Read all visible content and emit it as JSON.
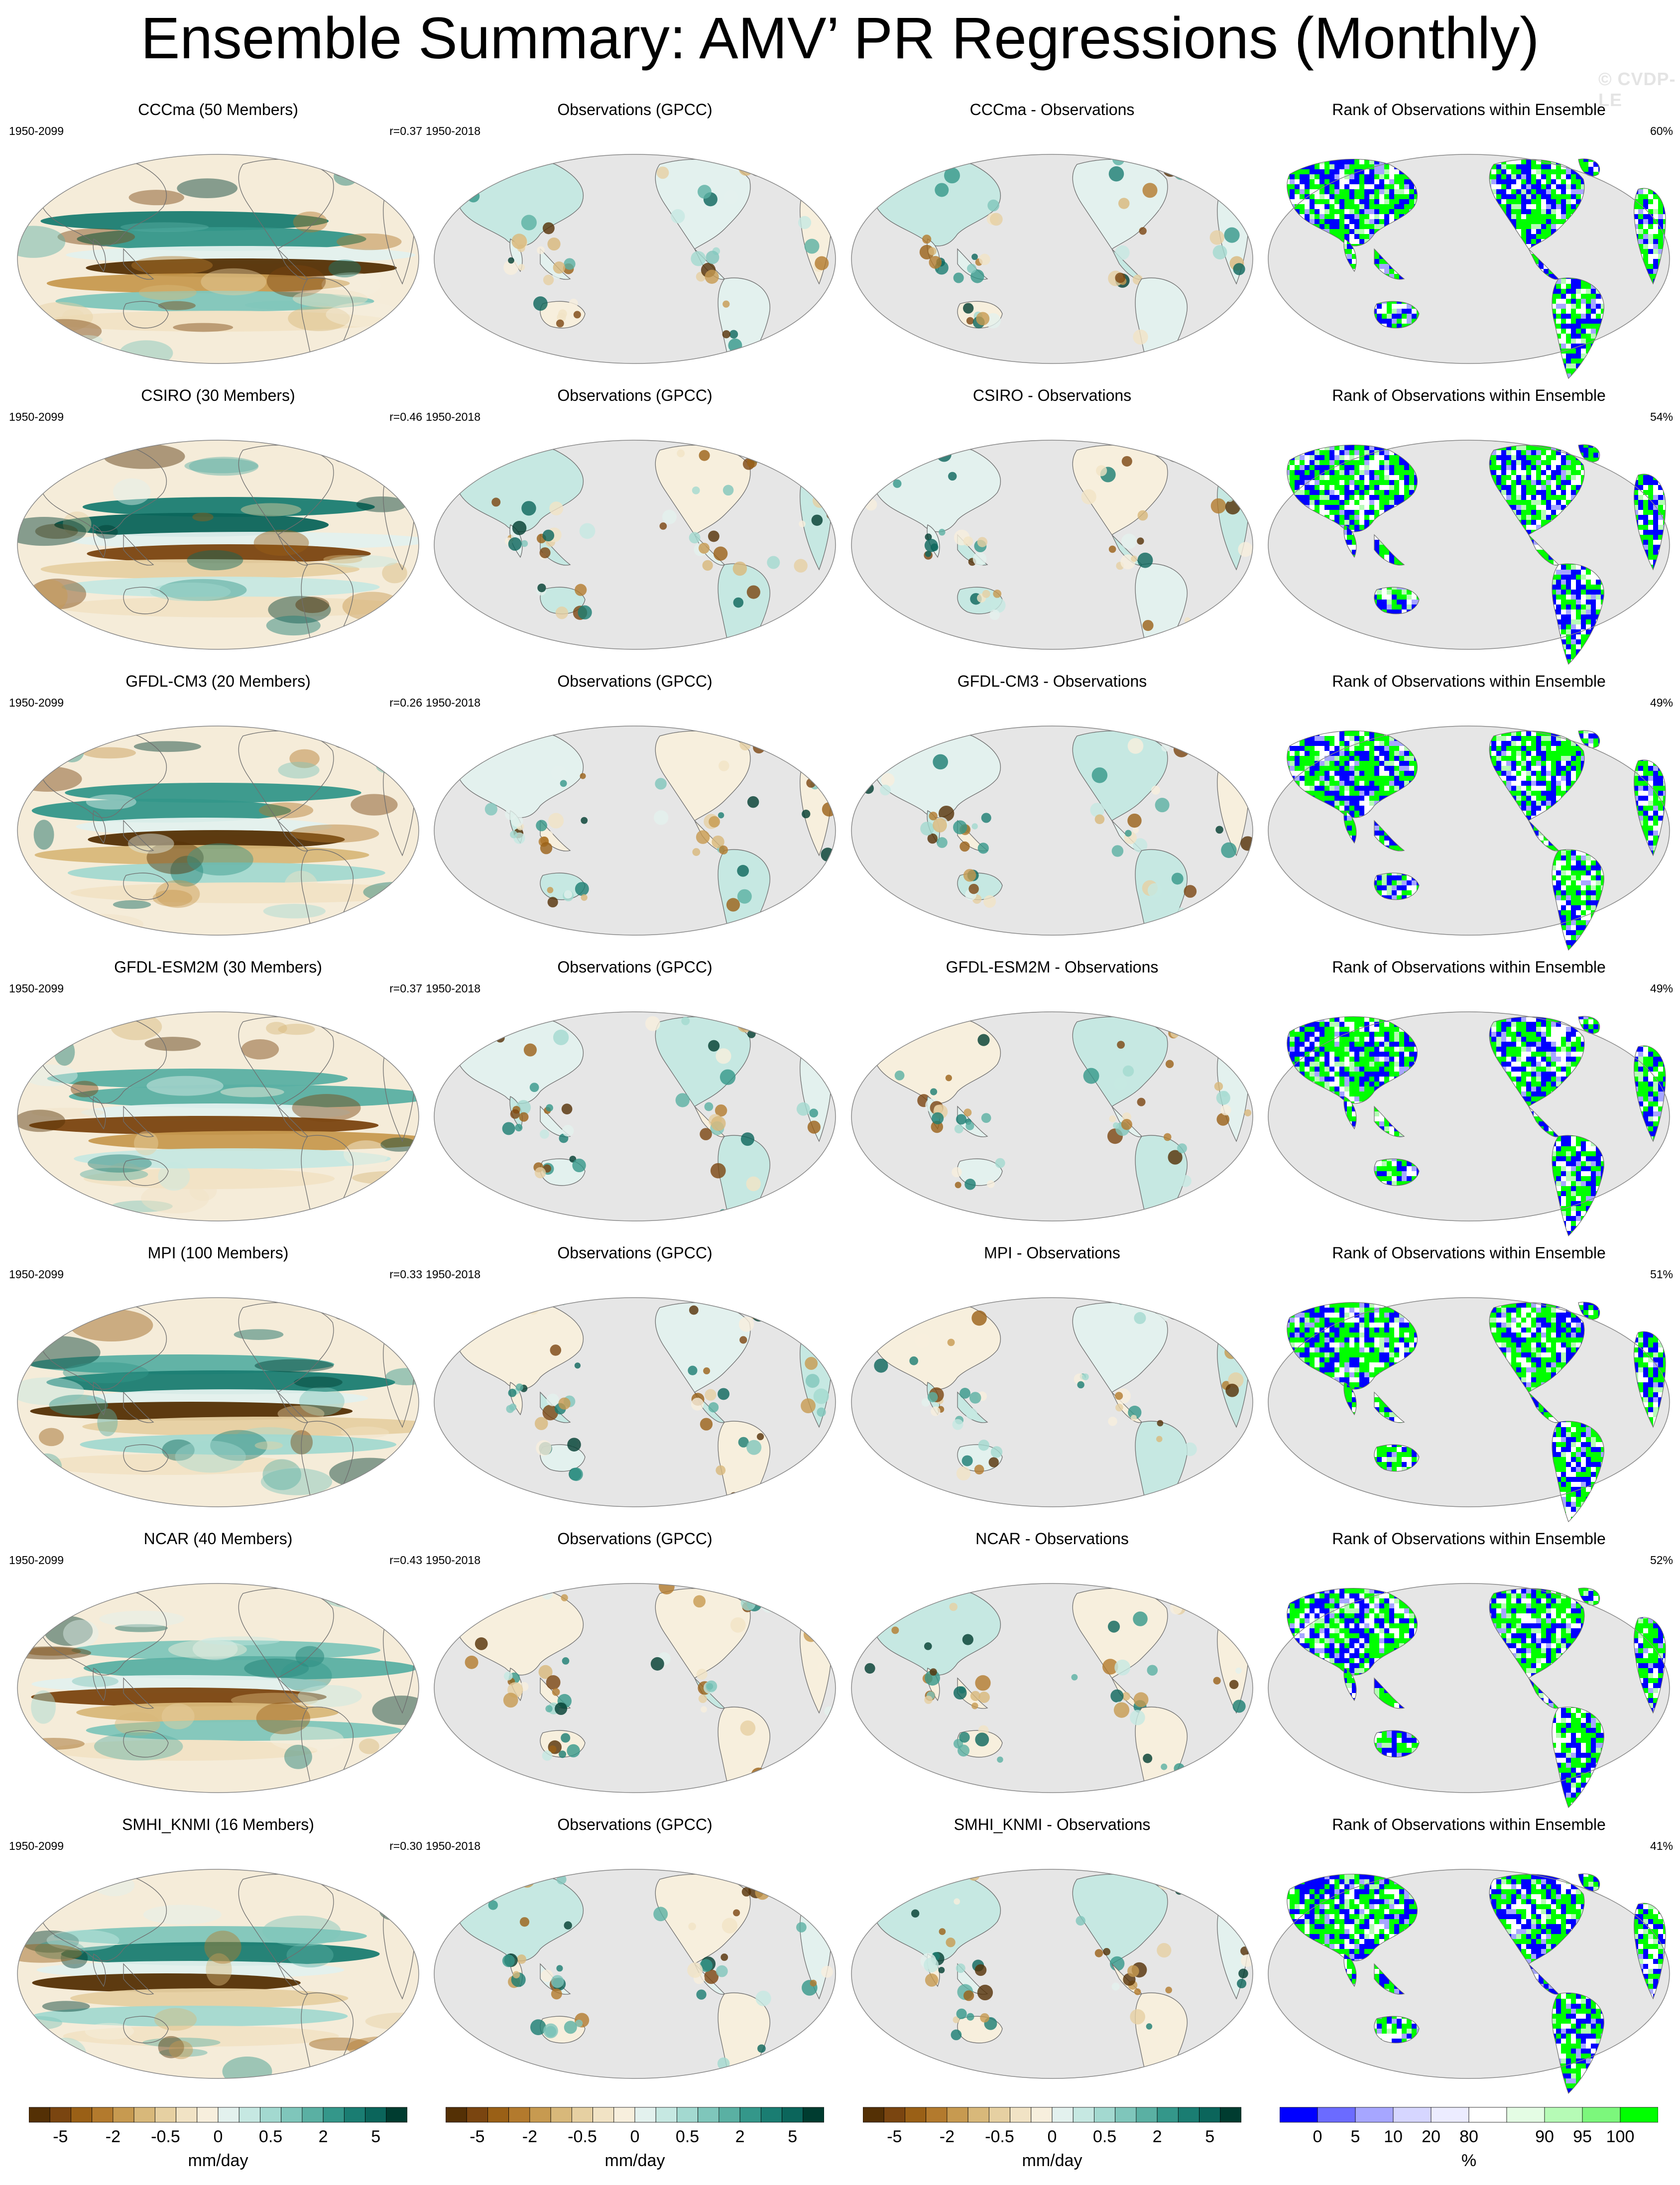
{
  "title": "Ensemble Summary: AMV’ PR Regressions (Monthly)",
  "watermark": "© CVDP-LE",
  "rows": [
    {
      "model_title": "CCCma (50 Members)",
      "model_period": "1950-2099",
      "model_r": "r=0.37",
      "obs_title": "Observations (GPCC)",
      "obs_period": "1950-2018",
      "diff_title": "CCCma - Observations",
      "rank_title": "Rank of Observations within Ensemble",
      "rank_pct": "60%"
    },
    {
      "model_title": "CSIRO (30 Members)",
      "model_period": "1950-2099",
      "model_r": "r=0.46",
      "obs_title": "Observations (GPCC)",
      "obs_period": "1950-2018",
      "diff_title": "CSIRO - Observations",
      "rank_title": "Rank of Observations within Ensemble",
      "rank_pct": "54%"
    },
    {
      "model_title": "GFDL-CM3 (20 Members)",
      "model_period": "1950-2099",
      "model_r": "r=0.26",
      "obs_title": "Observations (GPCC)",
      "obs_period": "1950-2018",
      "diff_title": "GFDL-CM3 - Observations",
      "rank_title": "Rank of Observations within Ensemble",
      "rank_pct": "49%"
    },
    {
      "model_title": "GFDL-ESM2M (30 Members)",
      "model_period": "1950-2099",
      "model_r": "r=0.37",
      "obs_title": "Observations (GPCC)",
      "obs_period": "1950-2018",
      "diff_title": "GFDL-ESM2M - Observations",
      "rank_title": "Rank of Observations within Ensemble",
      "rank_pct": "49%"
    },
    {
      "model_title": "MPI (100 Members)",
      "model_period": "1950-2099",
      "model_r": "r=0.33",
      "obs_title": "Observations (GPCC)",
      "obs_period": "1950-2018",
      "diff_title": "MPI - Observations",
      "rank_title": "Rank of Observations within Ensemble",
      "rank_pct": "51%"
    },
    {
      "model_title": "NCAR (40 Members)",
      "model_period": "1950-2099",
      "model_r": "r=0.43",
      "obs_title": "Observations (GPCC)",
      "obs_period": "1950-2018",
      "diff_title": "NCAR - Observations",
      "rank_title": "Rank of Observations within Ensemble",
      "rank_pct": "52%"
    },
    {
      "model_title": "SMHI_KNMI (16 Members)",
      "model_period": "1950-2099",
      "model_r": "r=0.30",
      "obs_title": "Observations (GPCC)",
      "obs_period": "1950-2018",
      "diff_title": "SMHI_KNMI - Observations",
      "rank_title": "Rank of Observations within Ensemble",
      "rank_pct": "41%"
    }
  ],
  "colors": {
    "ocean_bg": "#e6e6e6",
    "diverging": [
      "#543005",
      "#7a4510",
      "#9a6016",
      "#b37a2d",
      "#c79a50",
      "#d8b87a",
      "#e6d0a2",
      "#f1e3c5",
      "#f7efdd",
      "#e3f1ee",
      "#c6e8e2",
      "#a3d9d0",
      "#7fc6bb",
      "#5ab0a3",
      "#34978a",
      "#1a7d72",
      "#0b655b",
      "#003c30"
    ],
    "rank": [
      "#0000ff",
      "#6b6bff",
      "#a6a6ff",
      "#d6d6ff",
      "#ececff",
      "#ffffff",
      "#e4fde4",
      "#b6fbb6",
      "#7cf77c",
      "#00ff00"
    ]
  },
  "colorbars": {
    "diverging_labels": [
      "-5",
      "-2",
      "-0.5",
      "0",
      "0.5",
      "2",
      "5"
    ],
    "diverging_units": "mm/day",
    "rank_labels": [
      "0",
      "5",
      "10",
      "20",
      "80",
      "90",
      "95",
      "100"
    ],
    "rank_units": "%"
  },
  "chart_data": [
    {
      "type": "heatmap",
      "title": "Ensemble Summary: AMV’ PR Regressions (Monthly)",
      "panels": "7 rows × 4 columns (model ensemble mean, observations, difference, rank)",
      "models": [
        "CCCma",
        "CSIRO",
        "GFDL-CM3",
        "GFDL-ESM2M",
        "MPI",
        "NCAR",
        "SMHI_KNMI"
      ],
      "members": [
        50,
        30,
        20,
        30,
        100,
        40,
        16
      ],
      "pattern_correlation": [
        0.37,
        0.46,
        0.26,
        0.37,
        0.33,
        0.43,
        0.3
      ],
      "rank_percent": [
        60,
        54,
        49,
        49,
        51,
        52,
        41
      ],
      "model_period": "1950-2099",
      "obs_period": "1950-2018",
      "observations": "GPCC",
      "colorbar_units": "mm/day",
      "colorbar_ticks": [
        -5,
        -2,
        -0.5,
        0,
        0.5,
        2,
        5
      ],
      "rank_colorbar_ticks": [
        0,
        5,
        10,
        20,
        80,
        90,
        95,
        100
      ],
      "rank_units": "%"
    }
  ]
}
